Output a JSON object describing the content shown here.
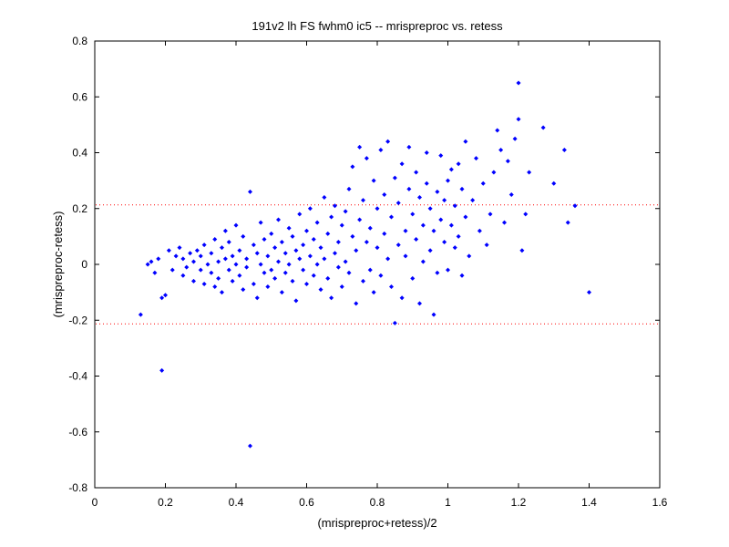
{
  "chart_data": {
    "type": "scatter",
    "title": "191v2 lh FS fwhm0 ic5 -- mrispreproc vs. retess",
    "xlabel": "(mrispreproc+retess)/2",
    "ylabel": "(mrispreproc-retess)",
    "xlim": [
      0,
      1.6
    ],
    "ylim": [
      -0.8,
      0.8
    ],
    "xticks": [
      0,
      0.2,
      0.4,
      0.6,
      0.8,
      1,
      1.2,
      1.4,
      1.6
    ],
    "yticks": [
      -0.8,
      -0.6,
      -0.4,
      -0.2,
      0,
      0.2,
      0.4,
      0.6,
      0.8
    ],
    "xtick_labels": [
      "0",
      "0.2",
      "0.4",
      "0.6",
      "0.8",
      "1",
      "1.2",
      "1.4",
      "1.6"
    ],
    "ytick_labels": [
      "-0.8",
      "-0.6",
      "-0.4",
      "-0.2",
      "0",
      "0.2",
      "0.4",
      "0.6",
      "0.8"
    ],
    "grid": false,
    "reference_lines": [
      {
        "y": 0.213,
        "style": "dotted",
        "color": "#ff0000"
      },
      {
        "y": -0.213,
        "style": "dotted",
        "color": "#ff0000"
      }
    ],
    "marker_color": "#0000ff",
    "series": [
      {
        "points": [
          [
            0.13,
            -0.18
          ],
          [
            0.15,
            0.0
          ],
          [
            0.16,
            0.01
          ],
          [
            0.17,
            -0.03
          ],
          [
            0.18,
            0.02
          ],
          [
            0.19,
            -0.12
          ],
          [
            0.19,
            -0.38
          ],
          [
            0.2,
            -0.11
          ],
          [
            0.21,
            0.05
          ],
          [
            0.22,
            -0.02
          ],
          [
            0.23,
            0.03
          ],
          [
            0.24,
            0.06
          ],
          [
            0.25,
            -0.04
          ],
          [
            0.25,
            0.02
          ],
          [
            0.26,
            -0.01
          ],
          [
            0.27,
            0.04
          ],
          [
            0.28,
            -0.06
          ],
          [
            0.28,
            0.01
          ],
          [
            0.29,
            0.05
          ],
          [
            0.3,
            -0.02
          ],
          [
            0.3,
            0.03
          ],
          [
            0.31,
            -0.07
          ],
          [
            0.31,
            0.07
          ],
          [
            0.32,
            0.0
          ],
          [
            0.33,
            -0.03
          ],
          [
            0.33,
            0.04
          ],
          [
            0.34,
            -0.08
          ],
          [
            0.34,
            0.09
          ],
          [
            0.35,
            0.01
          ],
          [
            0.35,
            -0.05
          ],
          [
            0.36,
            0.06
          ],
          [
            0.36,
            -0.1
          ],
          [
            0.37,
            0.02
          ],
          [
            0.37,
            0.12
          ],
          [
            0.38,
            -0.02
          ],
          [
            0.38,
            0.08
          ],
          [
            0.39,
            -0.06
          ],
          [
            0.39,
            0.03
          ],
          [
            0.4,
            0.0
          ],
          [
            0.4,
            0.14
          ],
          [
            0.41,
            -0.04
          ],
          [
            0.41,
            0.05
          ],
          [
            0.42,
            -0.09
          ],
          [
            0.42,
            0.1
          ],
          [
            0.43,
            0.02
          ],
          [
            0.43,
            -0.01
          ],
          [
            0.44,
            0.26
          ],
          [
            0.44,
            -0.65
          ],
          [
            0.45,
            0.07
          ],
          [
            0.45,
            -0.07
          ],
          [
            0.46,
            0.04
          ],
          [
            0.46,
            -0.12
          ],
          [
            0.47,
            0.15
          ],
          [
            0.47,
            0.0
          ],
          [
            0.48,
            -0.03
          ],
          [
            0.48,
            0.09
          ],
          [
            0.49,
            0.03
          ],
          [
            0.49,
            -0.08
          ],
          [
            0.5,
            0.11
          ],
          [
            0.5,
            -0.02
          ],
          [
            0.51,
            0.06
          ],
          [
            0.51,
            -0.05
          ],
          [
            0.52,
            0.16
          ],
          [
            0.52,
            0.01
          ],
          [
            0.53,
            -0.1
          ],
          [
            0.53,
            0.08
          ],
          [
            0.54,
            0.04
          ],
          [
            0.54,
            -0.03
          ],
          [
            0.55,
            0.13
          ],
          [
            0.55,
            0.0
          ],
          [
            0.56,
            -0.06
          ],
          [
            0.56,
            0.1
          ],
          [
            0.57,
            0.05
          ],
          [
            0.57,
            -0.13
          ],
          [
            0.58,
            0.18
          ],
          [
            0.58,
            0.02
          ],
          [
            0.59,
            -0.02
          ],
          [
            0.59,
            0.07
          ],
          [
            0.6,
            0.12
          ],
          [
            0.6,
            -0.07
          ],
          [
            0.61,
            0.03
          ],
          [
            0.61,
            0.2
          ],
          [
            0.62,
            -0.04
          ],
          [
            0.62,
            0.09
          ],
          [
            0.63,
            0.0
          ],
          [
            0.63,
            0.15
          ],
          [
            0.64,
            -0.09
          ],
          [
            0.64,
            0.06
          ],
          [
            0.65,
            0.24
          ],
          [
            0.65,
            0.02
          ],
          [
            0.66,
            -0.05
          ],
          [
            0.66,
            0.11
          ],
          [
            0.67,
            0.17
          ],
          [
            0.67,
            -0.12
          ],
          [
            0.68,
            0.04
          ],
          [
            0.68,
            0.21
          ],
          [
            0.69,
            -0.01
          ],
          [
            0.69,
            0.08
          ],
          [
            0.7,
            0.14
          ],
          [
            0.7,
            -0.08
          ],
          [
            0.71,
            0.19
          ],
          [
            0.71,
            0.01
          ],
          [
            0.72,
            0.27
          ],
          [
            0.72,
            -0.03
          ],
          [
            0.73,
            0.1
          ],
          [
            0.73,
            0.35
          ],
          [
            0.74,
            -0.14
          ],
          [
            0.74,
            0.05
          ],
          [
            0.75,
            0.42
          ],
          [
            0.75,
            0.16
          ],
          [
            0.76,
            -0.06
          ],
          [
            0.76,
            0.23
          ],
          [
            0.77,
            0.08
          ],
          [
            0.77,
            0.38
          ],
          [
            0.78,
            -0.02
          ],
          [
            0.78,
            0.13
          ],
          [
            0.79,
            0.3
          ],
          [
            0.79,
            -0.1
          ],
          [
            0.8,
            0.06
          ],
          [
            0.8,
            0.2
          ],
          [
            0.81,
            0.41
          ],
          [
            0.81,
            -0.04
          ],
          [
            0.82,
            0.11
          ],
          [
            0.82,
            0.25
          ],
          [
            0.83,
            0.44
          ],
          [
            0.83,
            0.02
          ],
          [
            0.84,
            -0.08
          ],
          [
            0.84,
            0.17
          ],
          [
            0.85,
            -0.21
          ],
          [
            0.85,
            0.31
          ],
          [
            0.86,
            0.07
          ],
          [
            0.86,
            0.22
          ],
          [
            0.87,
            -0.12
          ],
          [
            0.87,
            0.36
          ],
          [
            0.88,
            0.12
          ],
          [
            0.88,
            0.03
          ],
          [
            0.89,
            0.27
          ],
          [
            0.89,
            0.42
          ],
          [
            0.9,
            -0.05
          ],
          [
            0.9,
            0.18
          ],
          [
            0.91,
            0.09
          ],
          [
            0.91,
            0.33
          ],
          [
            0.92,
            -0.14
          ],
          [
            0.92,
            0.24
          ],
          [
            0.93,
            0.14
          ],
          [
            0.93,
            0.01
          ],
          [
            0.94,
            0.29
          ],
          [
            0.94,
            0.4
          ],
          [
            0.95,
            0.05
          ],
          [
            0.95,
            0.2
          ],
          [
            0.96,
            -0.18
          ],
          [
            0.96,
            0.12
          ],
          [
            0.97,
            0.26
          ],
          [
            0.97,
            -0.03
          ],
          [
            0.98,
            0.39
          ],
          [
            0.98,
            0.16
          ],
          [
            0.99,
            0.08
          ],
          [
            0.99,
            0.23
          ],
          [
            1.0,
            0.3
          ],
          [
            1.0,
            -0.02
          ],
          [
            1.01,
            0.14
          ],
          [
            1.01,
            0.34
          ],
          [
            1.02,
            0.06
          ],
          [
            1.02,
            0.21
          ],
          [
            1.03,
            0.36
          ],
          [
            1.03,
            0.1
          ],
          [
            1.04,
            -0.04
          ],
          [
            1.04,
            0.27
          ],
          [
            1.05,
            0.44
          ],
          [
            1.05,
            0.17
          ],
          [
            1.06,
            0.03
          ],
          [
            1.07,
            0.23
          ],
          [
            1.08,
            0.38
          ],
          [
            1.09,
            0.12
          ],
          [
            1.1,
            0.29
          ],
          [
            1.11,
            0.07
          ],
          [
            1.12,
            0.18
          ],
          [
            1.13,
            0.33
          ],
          [
            1.14,
            0.48
          ],
          [
            1.15,
            0.41
          ],
          [
            1.16,
            0.15
          ],
          [
            1.17,
            0.37
          ],
          [
            1.18,
            0.25
          ],
          [
            1.19,
            0.45
          ],
          [
            1.2,
            0.65
          ],
          [
            1.2,
            0.52
          ],
          [
            1.21,
            0.05
          ],
          [
            1.22,
            0.18
          ],
          [
            1.23,
            0.33
          ],
          [
            1.27,
            0.49
          ],
          [
            1.3,
            0.29
          ],
          [
            1.33,
            0.41
          ],
          [
            1.34,
            0.15
          ],
          [
            1.36,
            0.21
          ],
          [
            1.4,
            -0.1
          ]
        ]
      }
    ]
  }
}
